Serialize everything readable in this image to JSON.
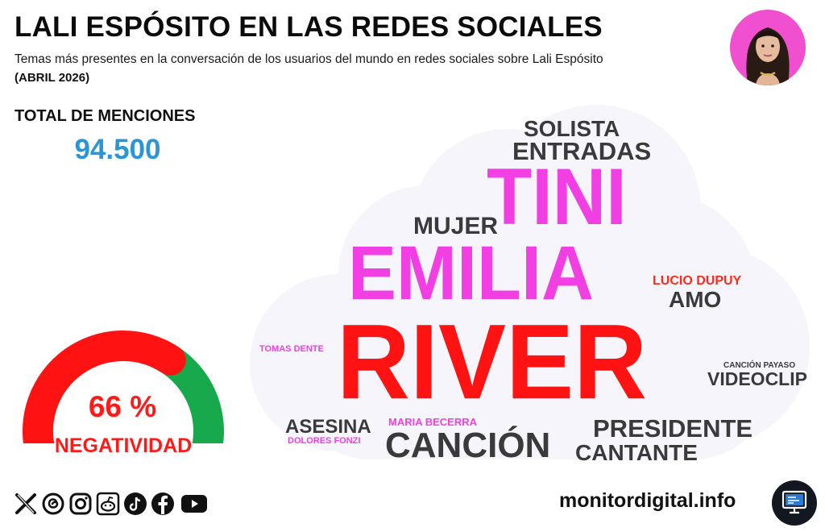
{
  "header": {
    "title": "LALI ESPÓSITO EN LAS REDES SOCIALES",
    "subtitle": "Temas más presentes en la conversación de los usuarios del mundo en redes sociales sobre Lali Espósito",
    "period": "(ABRIL 2026)"
  },
  "totals": {
    "label": "TOTAL DE MENCIONES",
    "value": "94.500"
  },
  "gauge": {
    "negative_fraction": 0.66,
    "value_text": "66 %",
    "label": "NEGATIVIDAD",
    "negative_color": "#ff1212",
    "positive_color": "#16a84a"
  },
  "wordcloud": {
    "words": [
      {
        "text": "SOLISTA",
        "color": "#3a3a3a"
      },
      {
        "text": "ENTRADAS",
        "color": "#3a3a3a"
      },
      {
        "text": "TINI",
        "color": "#f23fe4"
      },
      {
        "text": "MUJER",
        "color": "#3a3a3a"
      },
      {
        "text": "EMILIA",
        "color": "#f23fe4"
      },
      {
        "text": "LUCIO DUPUY",
        "color": "#ff2a1a"
      },
      {
        "text": "AMO",
        "color": "#3a3a3a"
      },
      {
        "text": "TOMAS DENTE",
        "color": "#f23fe4"
      },
      {
        "text": "RIVER",
        "color": "#ff1212"
      },
      {
        "text": "CANCIÓN PAYASO",
        "color": "#3a3a3a"
      },
      {
        "text": "VIDEOCLIP",
        "color": "#3a3a3a"
      },
      {
        "text": "ASESINA",
        "color": "#3a3a3a"
      },
      {
        "text": "MARIA BECERRA",
        "color": "#f23fe4"
      },
      {
        "text": "DOLORES FONZI",
        "color": "#f23fe4"
      },
      {
        "text": "CANCIÓN",
        "color": "#3a3a3a"
      },
      {
        "text": "PRESIDENTE",
        "color": "#3a3a3a"
      },
      {
        "text": "CANTANTE",
        "color": "#3a3a3a"
      }
    ]
  },
  "footer": {
    "social_icons": [
      "x-icon",
      "threads-icon",
      "instagram-icon",
      "reddit-icon",
      "tiktok-icon",
      "facebook-icon",
      "youtube-icon"
    ],
    "site": "monitordigital.info",
    "logo_icon": "monitor-icon"
  }
}
